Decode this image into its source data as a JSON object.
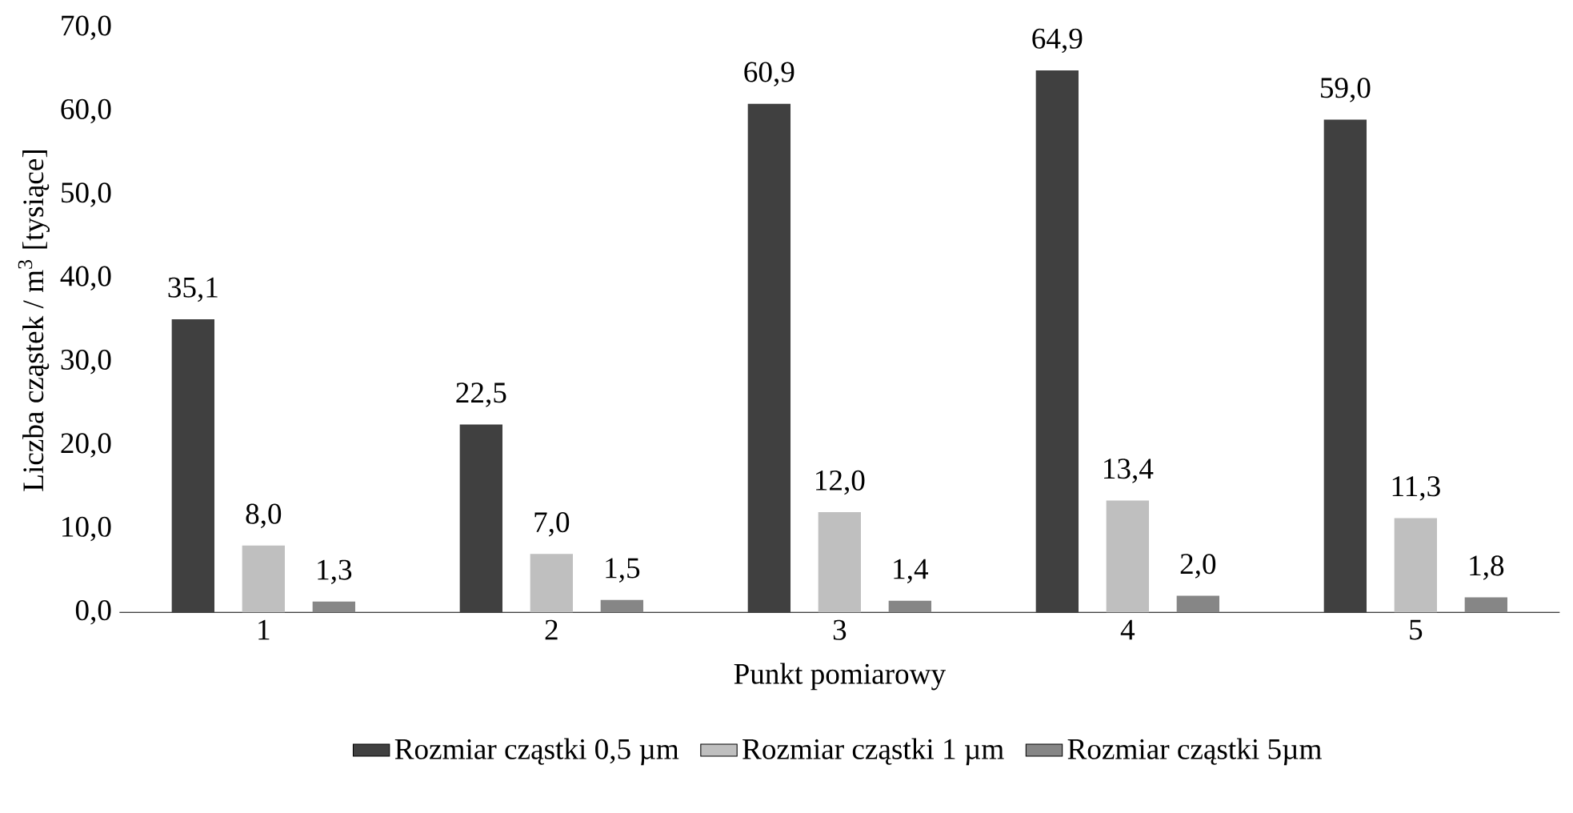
{
  "chart_data": {
    "type": "bar",
    "xlabel": "Punkt pomiarowy",
    "ylabel": "Liczba cząstek / m$^{3}$ [tysiące]",
    "categories": [
      "1",
      "2",
      "3",
      "4",
      "5"
    ],
    "series": [
      {
        "name": "Rozmiar cząstki 0,5 µm",
        "color": "#404040",
        "values": [
          35.1,
          22.5,
          60.9,
          64.9,
          59.0
        ],
        "value_labels": [
          "35,1",
          "22,5",
          "60,9",
          "64,9",
          "59,0"
        ]
      },
      {
        "name": "Rozmiar cząstki 1 µm",
        "color": "#bfbfbf",
        "values": [
          8.0,
          7.0,
          12.0,
          13.4,
          11.3
        ],
        "value_labels": [
          "8,0",
          "7,0",
          "12,0",
          "13,4",
          "11,3"
        ]
      },
      {
        "name": "Rozmiar cząstki 5µm",
        "color": "#868686",
        "values": [
          1.3,
          1.5,
          1.4,
          2.0,
          1.8
        ],
        "value_labels": [
          "1,3",
          "1,5",
          "1,4",
          "2,0",
          "1,8"
        ]
      }
    ],
    "ylim": [
      0,
      70
    ],
    "yticks": [
      {
        "value": 0,
        "label": "0,0"
      },
      {
        "value": 10,
        "label": "10,0"
      },
      {
        "value": 20,
        "label": "20,0"
      },
      {
        "value": 30,
        "label": "30,0"
      },
      {
        "value": 40,
        "label": "40,0"
      },
      {
        "value": 50,
        "label": "50,0"
      },
      {
        "value": 60,
        "label": "60,0"
      },
      {
        "value": 70,
        "label": "70,0"
      }
    ],
    "grid": false,
    "legend": "bottom"
  }
}
